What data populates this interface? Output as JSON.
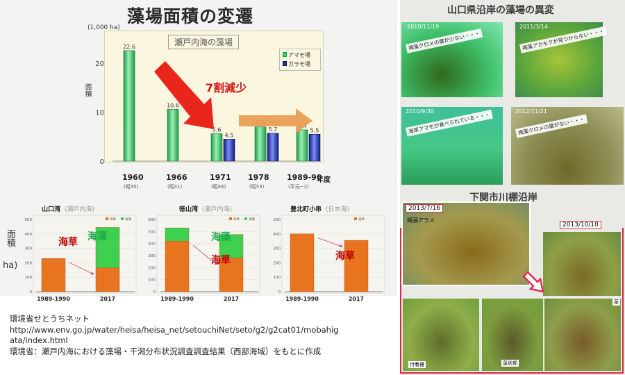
{
  "left": {
    "title": "藻場面積の変遷",
    "main_chart": {
      "unit": "(1,000 ha)",
      "ylabel": "面積",
      "box_title": "瀬戸内海の藻場",
      "legend": [
        "アマモ場",
        "ガラモ場"
      ],
      "reduction_label": "7割減少",
      "year_suffix": "年度"
    },
    "regional": {
      "ylabel": "面積",
      "ylabel_unit": "ha)",
      "label_seaweed": "海草",
      "label_algae": "海藻",
      "legend": [
        "海草",
        "海藻"
      ]
    }
  },
  "chart_data": [
    {
      "type": "bar",
      "title": "瀬戸内海の藻場",
      "categories": [
        "1960",
        "1966",
        "1971",
        "1978",
        "1989-90"
      ],
      "category_sublabels": [
        "(昭35)",
        "(昭41)",
        "(昭46)",
        "(昭53)",
        "(平元~2)"
      ],
      "xlabel": "年度",
      "ylabel": "面積 (1,000 ha)",
      "ylim": [
        0,
        25
      ],
      "yticks": [
        0,
        10,
        20
      ],
      "series": [
        {
          "name": "アマモ場",
          "values": [
            22.6,
            10.6,
            5.6,
            7.0,
            6.4
          ],
          "color": "#3ec86a"
        },
        {
          "name": "ガラモ場",
          "values": [
            null,
            null,
            4.5,
            5.7,
            5.5
          ],
          "color": "#2233bb"
        }
      ],
      "data_labels": [
        [
          "22.6",
          "10.6",
          "5.6",
          "7.0",
          "6.4"
        ],
        [
          "",
          "",
          "4.5",
          "5.7",
          "5.5"
        ]
      ],
      "legend": "top-right"
    },
    {
      "type": "bar",
      "stacked": true,
      "title": "山口湾",
      "subtitle": "(瀬戸内海)",
      "categories": [
        "1989-1990",
        "2017"
      ],
      "ylim": [
        0,
        500
      ],
      "yticks": [
        0,
        100,
        200,
        300,
        400,
        500
      ],
      "series": [
        {
          "name": "海草",
          "values": [
            230,
            165
          ],
          "color": "#e8741f"
        },
        {
          "name": "海藻",
          "values": [
            0,
            280
          ],
          "color": "#3ed14f"
        }
      ]
    },
    {
      "type": "bar",
      "stacked": true,
      "title": "徳山湾",
      "subtitle": "(瀬戸内海)",
      "categories": [
        "1989-1990",
        "2017"
      ],
      "ylim": [
        0,
        600
      ],
      "yticks": [
        0,
        100,
        200,
        300,
        400,
        500,
        600
      ],
      "series": [
        {
          "name": "海草",
          "values": [
            420,
            280
          ],
          "color": "#e8741f"
        },
        {
          "name": "海藻",
          "values": [
            110,
            195
          ],
          "color": "#3ed14f"
        }
      ]
    },
    {
      "type": "bar",
      "stacked": true,
      "title": "豊北町小串",
      "subtitle": "(日本海)",
      "categories": [
        "1989-1990",
        "2017"
      ],
      "ylim": [
        0,
        500
      ],
      "yticks": [
        0,
        100,
        200,
        300,
        400,
        500
      ],
      "series": [
        {
          "name": "海草",
          "values": [
            400,
            355
          ],
          "color": "#e8741f"
        }
      ]
    }
  ],
  "right": {
    "title": "山口県沿岸の藻場の異変",
    "photos": [
      {
        "date": "2010/11/19",
        "note": "褐藻クロメの葉が少ない・・・"
      },
      {
        "date": "2011/3/14",
        "note": "褐藻アカモクが見つからない・・・"
      },
      {
        "date": "2010/9/30",
        "note": "海草アマモが食べられている・・・"
      },
      {
        "date": "2012/11/21",
        "note": "褐藻クロメの葉がない・・・"
      }
    ],
    "shimonoseki": {
      "title": "下関市川棚沿岸",
      "date_before": "2013/7/16",
      "label_before": "褐藻アラメ",
      "date_after": "2013/10/10",
      "labels": [
        "茎",
        "付着器",
        "葉状部"
      ]
    }
  },
  "credits": {
    "line1": "環境省せとうちネット",
    "line2": "http://www.env.go.jp/water/heisa/heisa_net/setouchiNet/seto/g2/g2cat01/mobahig",
    "line3": "ata/index.html",
    "line4": "環境省：瀬戸内海における藻場・干潟分布状況調査調査結果（西部海域）をもとに作成"
  }
}
